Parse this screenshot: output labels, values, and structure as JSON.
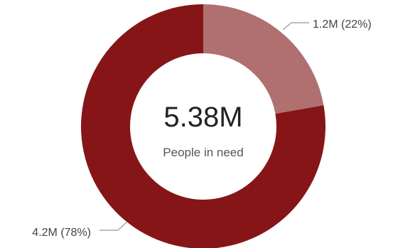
{
  "chart_data": {
    "type": "pie",
    "donut": true,
    "center_value": "5.38M",
    "center_label": "People in need",
    "slices": [
      {
        "value": 1.2,
        "percent": 22,
        "label": "1.2M (22%)",
        "color": "#b07070"
      },
      {
        "value": 4.2,
        "percent": 78,
        "label": "4.2M (78%)",
        "color": "#861518"
      }
    ],
    "connector_color": "#999999"
  }
}
